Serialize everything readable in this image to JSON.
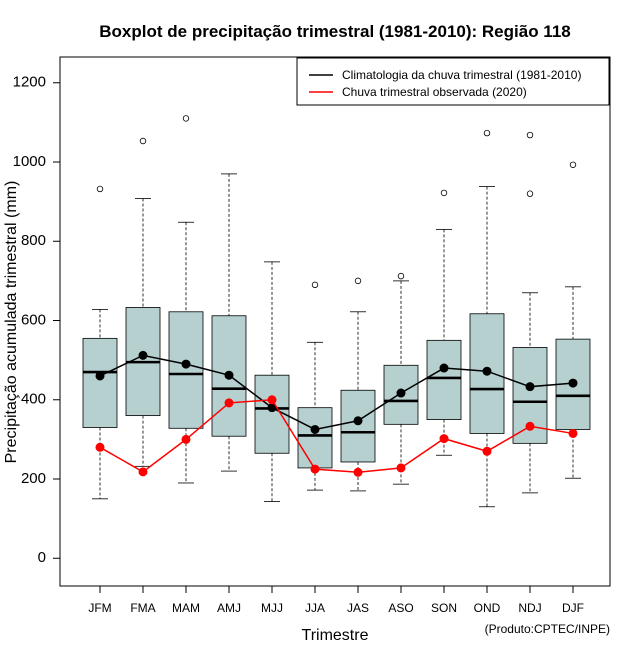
{
  "chart_data": {
    "type": "boxplot",
    "title": "Boxplot de precipitação trimestral (1981-2010): Região 118",
    "xlabel": "Trimestre",
    "ylabel": "Precipitação acumulada trimestral (mm)",
    "ylim": [
      -70,
      1265
    ],
    "yticks": [
      0,
      200,
      400,
      600,
      800,
      1000,
      1200
    ],
    "credit": "(Produto:CPTEC/INPE)",
    "categories": [
      "JFM",
      "FMA",
      "MAM",
      "AMJ",
      "MJJ",
      "JJA",
      "JAS",
      "ASO",
      "SON",
      "OND",
      "NDJ",
      "DJF"
    ],
    "boxes": [
      {
        "whisker_low": 150,
        "q1": 330,
        "median": 470,
        "q3": 555,
        "whisker_high": 628,
        "outliers": [
          932
        ]
      },
      {
        "whisker_low": 232,
        "q1": 360,
        "median": 495,
        "q3": 633,
        "whisker_high": 908,
        "outliers": [
          1053
        ]
      },
      {
        "whisker_low": 190,
        "q1": 328,
        "median": 465,
        "q3": 622,
        "whisker_high": 848,
        "outliers": [
          1110
        ]
      },
      {
        "whisker_low": 220,
        "q1": 308,
        "median": 428,
        "q3": 612,
        "whisker_high": 970,
        "outliers": []
      },
      {
        "whisker_low": 143,
        "q1": 265,
        "median": 378,
        "q3": 462,
        "whisker_high": 748,
        "outliers": []
      },
      {
        "whisker_low": 172,
        "q1": 228,
        "median": 310,
        "q3": 380,
        "whisker_high": 545,
        "outliers": [
          690
        ]
      },
      {
        "whisker_low": 170,
        "q1": 243,
        "median": 318,
        "q3": 424,
        "whisker_high": 622,
        "outliers": [
          700
        ]
      },
      {
        "whisker_low": 187,
        "q1": 338,
        "median": 397,
        "q3": 487,
        "whisker_high": 700,
        "outliers": [
          712
        ]
      },
      {
        "whisker_low": 260,
        "q1": 350,
        "median": 455,
        "q3": 550,
        "whisker_high": 830,
        "outliers": [
          922
        ]
      },
      {
        "whisker_low": 130,
        "q1": 315,
        "median": 427,
        "q3": 617,
        "whisker_high": 938,
        "outliers": [
          1073
        ]
      },
      {
        "whisker_low": 165,
        "q1": 290,
        "median": 395,
        "q3": 532,
        "whisker_high": 670,
        "outliers": [
          1068,
          920
        ]
      },
      {
        "whisker_low": 202,
        "q1": 325,
        "median": 410,
        "q3": 553,
        "whisker_high": 685,
        "outliers": [
          993
        ]
      }
    ],
    "series": [
      {
        "name": "Climatologia da chuva trimestral (1981-2010)",
        "color": "#000000",
        "values": [
          460,
          512,
          490,
          462,
          380,
          325,
          347,
          417,
          480,
          472,
          433,
          442
        ]
      },
      {
        "name": "Chuva trimestral observada (2020)",
        "color": "#ff0000",
        "values": [
          280,
          218,
          300,
          392,
          400,
          225,
          217,
          228,
          302,
          270,
          333,
          315
        ]
      }
    ],
    "box_fill": "#b6d0d0",
    "legend_position": "top-right"
  }
}
